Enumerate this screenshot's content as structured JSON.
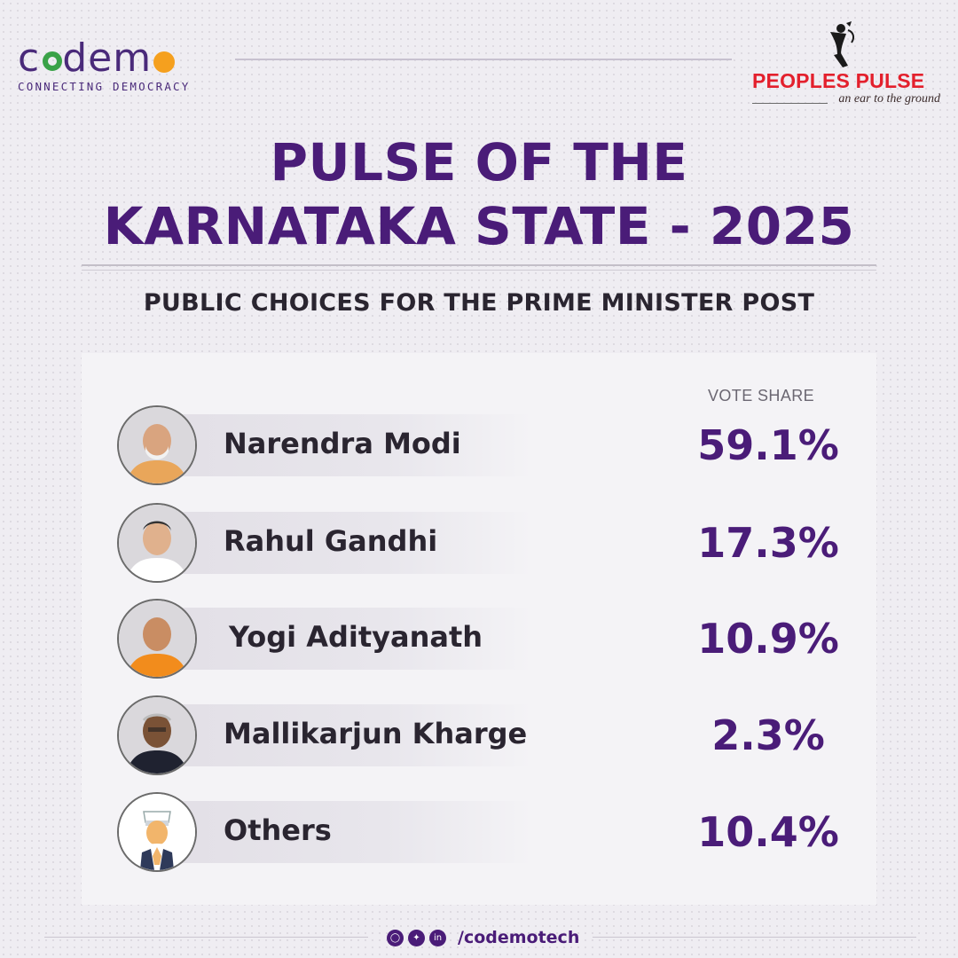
{
  "header": {
    "brand_name_parts": [
      "c",
      "d",
      "em"
    ],
    "brand_tagline": "CONNECTING DEMOCRACY",
    "partner_name": "PEOPLES PULSE",
    "partner_tagline": "an ear to the ground"
  },
  "title_line1": "PULSE OF THE",
  "title_line2": "KARNATAKA STATE - 2025",
  "subtitle": "PUBLIC CHOICES FOR THE PRIME MINISTER POST",
  "column_label": "VOTE SHARE",
  "candidates": [
    {
      "name": "Narendra Modi",
      "share": "59.1%",
      "avatar": "modi-photo",
      "attire": "#e9a65a"
    },
    {
      "name": "Rahul Gandhi",
      "share": "17.3%",
      "avatar": "rahul-photo",
      "attire": "#ffffff"
    },
    {
      "name": "Yogi Adityanath",
      "share": "10.9%",
      "avatar": "yogi-photo",
      "attire": "#f28c1c"
    },
    {
      "name": "Mallikarjun Kharge",
      "share": "2.3%",
      "avatar": "kharge-photo",
      "attire": "#1f2230"
    },
    {
      "name": "Others",
      "share": "10.4%",
      "avatar": "generic-person-icon",
      "attire": "#2f3a5a"
    }
  ],
  "footer": {
    "icons": [
      "instagram-icon",
      "twitter-icon",
      "linkedin-icon"
    ],
    "handle": "/codemotech"
  },
  "colors": {
    "accent_purple": "#4a1c78",
    "brand_green": "#3aa248",
    "brand_orange": "#f5a01e",
    "partner_red": "#e3202d"
  }
}
